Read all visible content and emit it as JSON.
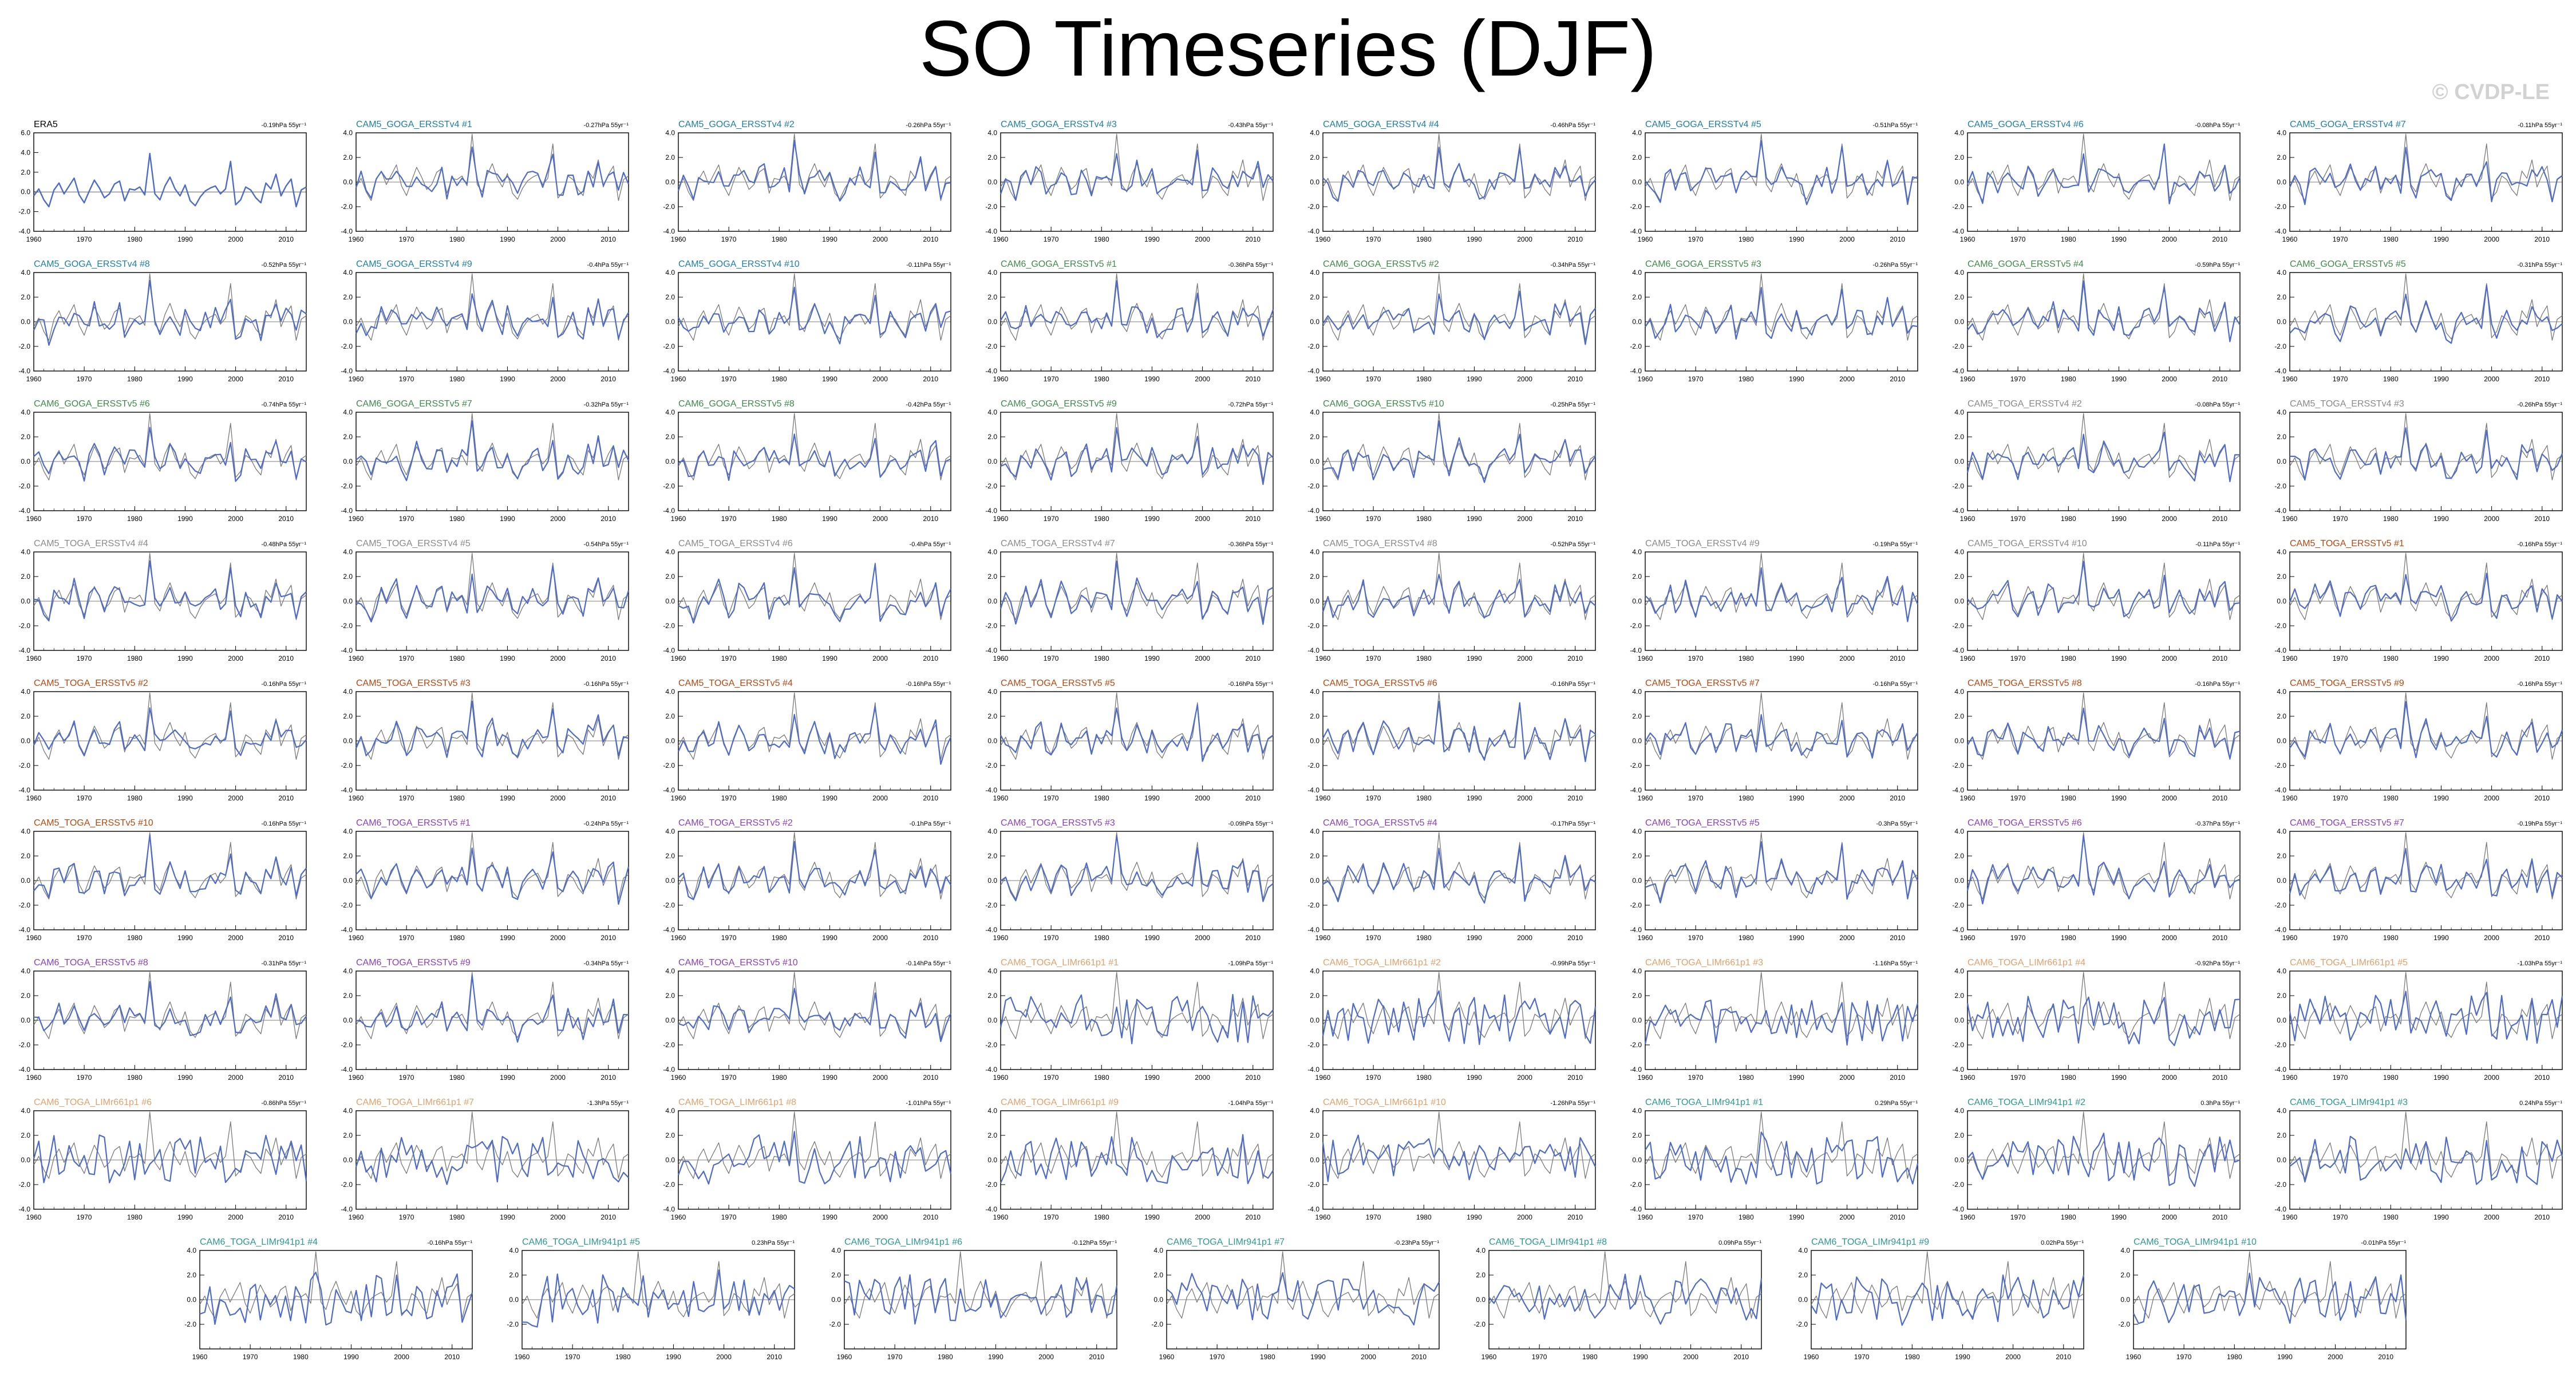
{
  "title": "SO Timeseries (DJF)",
  "watermark": "© CVDP-LE",
  "colors": {
    "sim_line": "#4f6bc8",
    "obs_line": "#7a7a7a",
    "era5": "#000000",
    "CAM5_GOGA_ERSSTv4": "#1d7fa8",
    "CAM6_GOGA_ERSSTv5": "#3f8a4c",
    "CAM5_TOGA_ERSSTv4": "#8a8a8a",
    "CAM5_TOGA_ERSSTv5": "#b8470f",
    "CAM6_TOGA_ERSSTv5": "#8a3fbf",
    "CAM6_TOGA_LIMr661p1": "#e4a06a",
    "CAM6_TOGA_LIMr941p1": "#2a9a8f"
  },
  "chart_data": {
    "type": "line",
    "x_range": [
      1960,
      2014
    ],
    "x_ticks": [
      1960,
      1970,
      1980,
      1990,
      2000,
      2010
    ],
    "y_ticks_era5": [
      "6.0",
      "4.0",
      "2.0",
      "0.0",
      "-2.0",
      "-4.0"
    ],
    "y_ticks_default": [
      "4.0",
      "2.0",
      "0.0",
      "-2.0",
      "-4.0"
    ],
    "y_ticks_short": [
      "4.0",
      "2.0",
      "0.0",
      "-2.0"
    ],
    "era5_series": [
      -0.4,
      0.3,
      -0.8,
      -1.5,
      0.2,
      0.9,
      -0.2,
      0.6,
      1.4,
      -0.3,
      -1.1,
      0.1,
      1.2,
      0.4,
      -0.6,
      -0.2,
      0.8,
      1.1,
      -0.9,
      0.3,
      0.2,
      0.5,
      -0.3,
      3.9,
      -0.2,
      -0.8,
      0.6,
      1.5,
      0.3,
      -0.4,
      0.7,
      -0.9,
      -1.4,
      -0.5,
      0.1,
      0.4,
      0.6,
      -0.2,
      0.3,
      3.1,
      -1.3,
      -0.8,
      0.5,
      0.2,
      -0.6,
      -1.1,
      0.9,
      0.3,
      1.8,
      -0.4,
      0.6,
      1.3,
      -1.5,
      0.2,
      0.5
    ],
    "panels": [
      {
        "name": "ERA5",
        "stat": "-0.19hPa 55yr⁻¹",
        "group": "era5",
        "yticks": "era5"
      },
      {
        "name": "CAM5_GOGA_ERSSTv4 #1",
        "stat": "-0.27hPa 55yr⁻¹",
        "group": "CAM5_GOGA_ERSSTv4"
      },
      {
        "name": "CAM5_GOGA_ERSSTv4 #2",
        "stat": "-0.26hPa 55yr⁻¹",
        "group": "CAM5_GOGA_ERSSTv4"
      },
      {
        "name": "CAM5_GOGA_ERSSTv4 #3",
        "stat": "-0.43hPa 55yr⁻¹",
        "group": "CAM5_GOGA_ERSSTv4"
      },
      {
        "name": "CAM5_GOGA_ERSSTv4 #4",
        "stat": "-0.46hPa 55yr⁻¹",
        "group": "CAM5_GOGA_ERSSTv4"
      },
      {
        "name": "CAM5_GOGA_ERSSTv4 #5",
        "stat": "-0.51hPa 55yr⁻¹",
        "group": "CAM5_GOGA_ERSSTv4"
      },
      {
        "name": "CAM5_GOGA_ERSSTv4 #6",
        "stat": "-0.08hPa 55yr⁻¹",
        "group": "CAM5_GOGA_ERSSTv4"
      },
      {
        "name": "CAM5_GOGA_ERSSTv4 #7",
        "stat": "-0.11hPa 55yr⁻¹",
        "group": "CAM5_GOGA_ERSSTv4"
      },
      {
        "name": "CAM5_GOGA_ERSSTv4 #8",
        "stat": "-0.52hPa 55yr⁻¹",
        "group": "CAM5_GOGA_ERSSTv4"
      },
      {
        "name": "CAM5_GOGA_ERSSTv4 #9",
        "stat": "-0.4hPa 55yr⁻¹",
        "group": "CAM5_GOGA_ERSSTv4"
      },
      {
        "name": "CAM5_GOGA_ERSSTv4 #10",
        "stat": "-0.11hPa 55yr⁻¹",
        "group": "CAM5_GOGA_ERSSTv4"
      },
      {
        "name": "CAM6_GOGA_ERSSTv5 #1",
        "stat": "-0.36hPa 55yr⁻¹",
        "group": "CAM6_GOGA_ERSSTv5"
      },
      {
        "name": "CAM6_GOGA_ERSSTv5 #2",
        "stat": "-0.34hPa 55yr⁻¹",
        "group": "CAM6_GOGA_ERSSTv5"
      },
      {
        "name": "CAM6_GOGA_ERSSTv5 #3",
        "stat": "-0.26hPa 55yr⁻¹",
        "group": "CAM6_GOGA_ERSSTv5",
        "yticks": "default"
      },
      {
        "name": "CAM6_GOGA_ERSSTv5 #4",
        "stat": "-0.59hPa 55yr⁻¹",
        "group": "CAM6_GOGA_ERSSTv5",
        "yticks": "default"
      },
      {
        "name": "CAM6_GOGA_ERSSTv5 #5",
        "stat": "-0.31hPa 55yr⁻¹",
        "group": "CAM6_GOGA_ERSSTv5",
        "yticks": "default"
      },
      {
        "name": "CAM6_GOGA_ERSSTv5 #6",
        "stat": "-0.74hPa 55yr⁻¹",
        "group": "CAM6_GOGA_ERSSTv5"
      },
      {
        "name": "CAM6_GOGA_ERSSTv5 #7",
        "stat": "-0.32hPa 55yr⁻¹",
        "group": "CAM6_GOGA_ERSSTv5"
      },
      {
        "name": "CAM6_GOGA_ERSSTv5 #8",
        "stat": "-0.42hPa 55yr⁻¹",
        "group": "CAM6_GOGA_ERSSTv5"
      },
      {
        "name": "CAM6_GOGA_ERSSTv5 #9",
        "stat": "-0.72hPa 55yr⁻¹",
        "group": "CAM6_GOGA_ERSSTv5"
      },
      {
        "name": "CAM6_GOGA_ERSSTv5 #10",
        "stat": "-0.25hPa 55yr⁻¹",
        "group": "CAM6_GOGA_ERSSTv5"
      },
      {
        "name": "CAM5_TOGA_ERSSTv4 #2",
        "stat": "-0.08hPa 55yr⁻¹",
        "group": "CAM5_TOGA_ERSSTv4"
      },
      {
        "name": "CAM5_TOGA_ERSSTv4 #3",
        "stat": "-0.26hPa 55yr⁻¹",
        "group": "CAM5_TOGA_ERSSTv4"
      },
      {
        "name": "CAM5_TOGA_ERSSTv4 #4",
        "stat": "-0.48hPa 55yr⁻¹",
        "group": "CAM5_TOGA_ERSSTv4"
      },
      {
        "name": "CAM5_TOGA_ERSSTv4 #5",
        "stat": "-0.54hPa 55yr⁻¹",
        "group": "CAM5_TOGA_ERSSTv4"
      },
      {
        "name": "CAM5_TOGA_ERSSTv4 #6",
        "stat": "-0.4hPa 55yr⁻¹",
        "group": "CAM5_TOGA_ERSSTv4"
      },
      {
        "name": "CAM5_TOGA_ERSSTv4 #7",
        "stat": "-0.36hPa 55yr⁻¹",
        "group": "CAM5_TOGA_ERSSTv4"
      },
      {
        "name": "CAM5_TOGA_ERSSTv4 #8",
        "stat": "-0.52hPa 55yr⁻¹",
        "group": "CAM5_TOGA_ERSSTv4"
      },
      {
        "name": "CAM5_TOGA_ERSSTv4 #9",
        "stat": "-0.19hPa 55yr⁻¹",
        "group": "CAM5_TOGA_ERSSTv4"
      },
      {
        "name": "CAM5_TOGA_ERSSTv4 #10",
        "stat": "-0.11hPa 55yr⁻¹",
        "group": "CAM5_TOGA_ERSSTv4"
      },
      {
        "name": "CAM5_TOGA_ERSSTv5 #1",
        "stat": "-0.16hPa 55yr⁻¹",
        "group": "CAM5_TOGA_ERSSTv5"
      },
      {
        "name": "CAM5_TOGA_ERSSTv5 #2",
        "stat": "-0.16hPa 55yr⁻¹",
        "group": "CAM5_TOGA_ERSSTv5"
      },
      {
        "name": "CAM5_TOGA_ERSSTv5 #3",
        "stat": "-0.16hPa 55yr⁻¹",
        "group": "CAM5_TOGA_ERSSTv5"
      },
      {
        "name": "CAM5_TOGA_ERSSTv5 #4",
        "stat": "-0.16hPa 55yr⁻¹",
        "group": "CAM5_TOGA_ERSSTv5"
      },
      {
        "name": "CAM5_TOGA_ERSSTv5 #5",
        "stat": "-0.16hPa 55yr⁻¹",
        "group": "CAM5_TOGA_ERSSTv5"
      },
      {
        "name": "CAM5_TOGA_ERSSTv5 #6",
        "stat": "-0.16hPa 55yr⁻¹",
        "group": "CAM5_TOGA_ERSSTv5"
      },
      {
        "name": "CAM5_TOGA_ERSSTv5 #7",
        "stat": "-0.16hPa 55yr⁻¹",
        "group": "CAM5_TOGA_ERSSTv5"
      },
      {
        "name": "CAM5_TOGA_ERSSTv5 #8",
        "stat": "-0.16hPa 55yr⁻¹",
        "group": "CAM5_TOGA_ERSSTv5"
      },
      {
        "name": "CAM5_TOGA_ERSSTv5 #9",
        "stat": "-0.16hPa 55yr⁻¹",
        "group": "CAM5_TOGA_ERSSTv5"
      },
      {
        "name": "CAM5_TOGA_ERSSTv5 #10",
        "stat": "-0.16hPa 55yr⁻¹",
        "group": "CAM5_TOGA_ERSSTv5"
      },
      {
        "name": "CAM6_TOGA_ERSSTv5 #1",
        "stat": "-0.24hPa 55yr⁻¹",
        "group": "CAM6_TOGA_ERSSTv5"
      },
      {
        "name": "CAM6_TOGA_ERSSTv5 #2",
        "stat": "-0.1hPa 55yr⁻¹",
        "group": "CAM6_TOGA_ERSSTv5"
      },
      {
        "name": "CAM6_TOGA_ERSSTv5 #3",
        "stat": "-0.09hPa 55yr⁻¹",
        "group": "CAM6_TOGA_ERSSTv5"
      },
      {
        "name": "CAM6_TOGA_ERSSTv5 #4",
        "stat": "-0.17hPa 55yr⁻¹",
        "group": "CAM6_TOGA_ERSSTv5"
      },
      {
        "name": "CAM6_TOGA_ERSSTv5 #5",
        "stat": "-0.3hPa 55yr⁻¹",
        "group": "CAM6_TOGA_ERSSTv5"
      },
      {
        "name": "CAM6_TOGA_ERSSTv5 #6",
        "stat": "-0.37hPa 55yr⁻¹",
        "group": "CAM6_TOGA_ERSSTv5"
      },
      {
        "name": "CAM6_TOGA_ERSSTv5 #7",
        "stat": "-0.19hPa 55yr⁻¹",
        "group": "CAM6_TOGA_ERSSTv5"
      },
      {
        "name": "CAM6_TOGA_ERSSTv5 #8",
        "stat": "-0.31hPa 55yr⁻¹",
        "group": "CAM6_TOGA_ERSSTv5"
      },
      {
        "name": "CAM6_TOGA_ERSSTv5 #9",
        "stat": "-0.34hPa 55yr⁻¹",
        "group": "CAM6_TOGA_ERSSTv5"
      },
      {
        "name": "CAM6_TOGA_ERSSTv5 #10",
        "stat": "-0.14hPa 55yr⁻¹",
        "group": "CAM6_TOGA_ERSSTv5"
      },
      {
        "name": "CAM6_TOGA_LIMr661p1 #1",
        "stat": "-1.09hPa 55yr⁻¹",
        "group": "CAM6_TOGA_LIMr661p1",
        "lim": true
      },
      {
        "name": "CAM6_TOGA_LIMr661p1 #2",
        "stat": "-0.99hPa 55yr⁻¹",
        "group": "CAM6_TOGA_LIMr661p1",
        "lim": true
      },
      {
        "name": "CAM6_TOGA_LIMr661p1 #3",
        "stat": "-1.16hPa 55yr⁻¹",
        "group": "CAM6_TOGA_LIMr661p1",
        "lim": true
      },
      {
        "name": "CAM6_TOGA_LIMr661p1 #4",
        "stat": "-0.92hPa 55yr⁻¹",
        "group": "CAM6_TOGA_LIMr661p1",
        "lim": true
      },
      {
        "name": "CAM6_TOGA_LIMr661p1 #5",
        "stat": "-1.03hPa 55yr⁻¹",
        "group": "CAM6_TOGA_LIMr661p1",
        "lim": true
      },
      {
        "name": "CAM6_TOGA_LIMr661p1 #6",
        "stat": "-0.86hPa 55yr⁻¹",
        "group": "CAM6_TOGA_LIMr661p1",
        "lim": true
      },
      {
        "name": "CAM6_TOGA_LIMr661p1 #7",
        "stat": "-1.3hPa 55yr⁻¹",
        "group": "CAM6_TOGA_LIMr661p1",
        "lim": true
      },
      {
        "name": "CAM6_TOGA_LIMr661p1 #8",
        "stat": "-1.01hPa 55yr⁻¹",
        "group": "CAM6_TOGA_LIMr661p1",
        "lim": true
      },
      {
        "name": "CAM6_TOGA_LIMr661p1 #9",
        "stat": "-1.04hPa 55yr⁻¹",
        "group": "CAM6_TOGA_LIMr661p1",
        "lim": true
      },
      {
        "name": "CAM6_TOGA_LIMr661p1 #10",
        "stat": "-1.26hPa 55yr⁻¹",
        "group": "CAM6_TOGA_LIMr661p1",
        "lim": true
      },
      {
        "name": "CAM6_TOGA_LIMr941p1 #1",
        "stat": "0.29hPa 55yr⁻¹",
        "group": "CAM6_TOGA_LIMr941p1",
        "lim": true
      },
      {
        "name": "CAM6_TOGA_LIMr941p1 #2",
        "stat": "0.3hPa 55yr⁻¹",
        "group": "CAM6_TOGA_LIMr941p1",
        "lim": true
      },
      {
        "name": "CAM6_TOGA_LIMr941p1 #3",
        "stat": "0.24hPa 55yr⁻¹",
        "group": "CAM6_TOGA_LIMr941p1",
        "lim": true
      },
      {
        "name": "CAM6_TOGA_LIMr941p1 #4",
        "stat": "-0.16hPa 55yr⁻¹",
        "group": "CAM6_TOGA_LIMr941p1",
        "lim": true,
        "yticks": "short"
      },
      {
        "name": "CAM6_TOGA_LIMr941p1 #5",
        "stat": "0.23hPa 55yr⁻¹",
        "group": "CAM6_TOGA_LIMr941p1",
        "lim": true,
        "yticks": "short"
      },
      {
        "name": "CAM6_TOGA_LIMr941p1 #6",
        "stat": "-0.12hPa 55yr⁻¹",
        "group": "CAM6_TOGA_LIMr941p1",
        "lim": true,
        "yticks": "short"
      },
      {
        "name": "CAM6_TOGA_LIMr941p1 #7",
        "stat": "-0.23hPa 55yr⁻¹",
        "group": "CAM6_TOGA_LIMr941p1",
        "lim": true,
        "yticks": "short"
      },
      {
        "name": "CAM6_TOGA_LIMr941p1 #8",
        "stat": "0.09hPa 55yr⁻¹",
        "group": "CAM6_TOGA_LIMr941p1",
        "lim": true,
        "yticks": "short"
      },
      {
        "name": "CAM6_TOGA_LIMr941p1 #9",
        "stat": "0.02hPa 55yr⁻¹",
        "group": "CAM6_TOGA_LIMr941p1",
        "lim": true,
        "yticks": "short"
      },
      {
        "name": "CAM6_TOGA_LIMr941p1 #10",
        "stat": "-0.01hPa 55yr⁻¹",
        "group": "CAM6_TOGA_LIMr941p1",
        "lim": true,
        "yticks": "short"
      }
    ]
  }
}
